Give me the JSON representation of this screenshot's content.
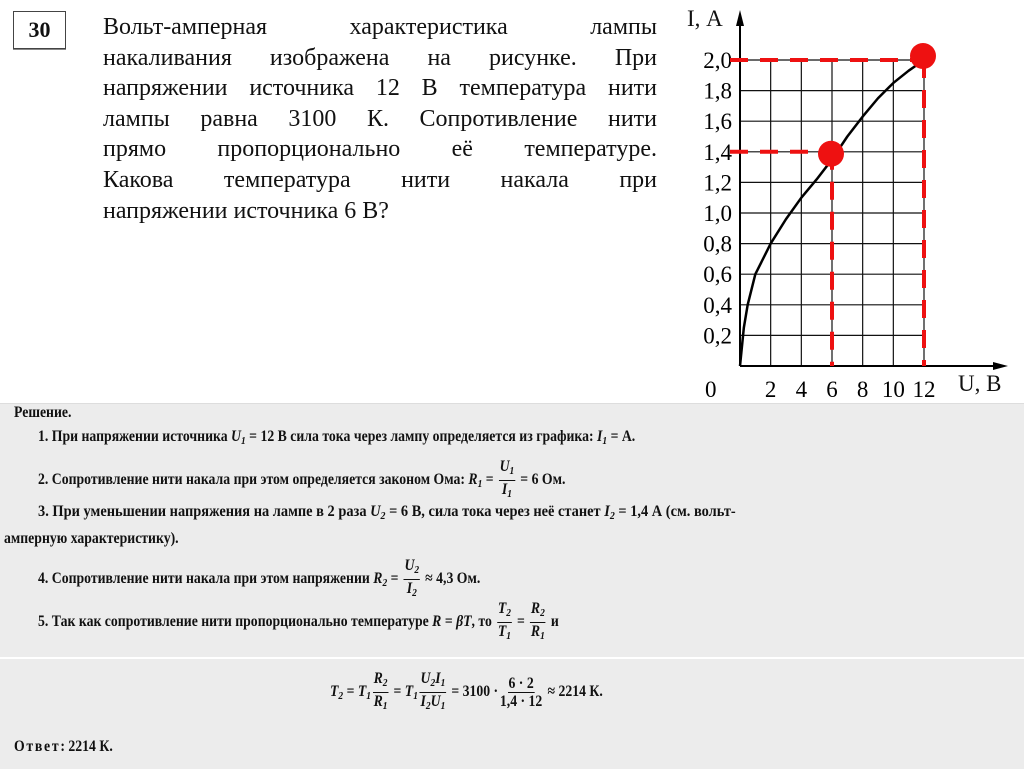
{
  "problem": {
    "number": "30",
    "lines": [
      "Вольт-амперная характеристика лампы",
      "накаливания изображена на рисунке. При",
      "напряжении источника 12 В температура нити",
      "лампы равна 3100 К. Сопротивление нити",
      "прямо пропорционально её температуре.",
      "Какова температура нити накала при",
      "напряжении источника 6 В?"
    ]
  },
  "chart_data": {
    "type": "line",
    "xlabel": "U, В",
    "ylabel": "I, А",
    "origin_label": "0",
    "xlim": [
      0,
      12
    ],
    "ylim": [
      0,
      2.0
    ],
    "grid": true,
    "x_ticks": [
      "2",
      "4",
      "6",
      "8",
      "10",
      "12"
    ],
    "y_ticks": [
      "0,2",
      "0,4",
      "0,6",
      "0,8",
      "1,0",
      "1,2",
      "1,4",
      "1,6",
      "1,8",
      "2,0"
    ],
    "series": [
      {
        "x": [
          0,
          0.25,
          0.5,
          1,
          2,
          3,
          4,
          5,
          6,
          7,
          8,
          9,
          10,
          11,
          12
        ],
        "y": [
          0,
          0.25,
          0.4,
          0.6,
          0.8,
          0.96,
          1.1,
          1.22,
          1.35,
          1.5,
          1.63,
          1.75,
          1.85,
          1.93,
          2.0
        ]
      }
    ],
    "highlighted_points": [
      {
        "x": 6,
        "y": 1.4
      },
      {
        "x": 12,
        "y": 2.0
      }
    ],
    "highlight_color": "#ee1111"
  },
  "solution": {
    "heading": "Решение.",
    "step1_a": "1. При напряжении источника ",
    "step1_b": " = 12 В сила тока через лампу определяется из графика: ",
    "step1_c": " = А.",
    "step2_a": "2. Сопротивление нити накала при этом определяется законом Ома: ",
    "step2_b": " = 6 Ом.",
    "step3_a": "3. При уменьшении напряжения на лампе в 2 раза ",
    "step3_b": " = 6 В, сила тока через неё станет ",
    "step3_c": " = 1,4 А (см. вольт-",
    "step3_d": "амперную характеристику).",
    "step4_a": "4. Сопротивление нити накала при этом напряжении ",
    "step4_b": " ≈ 4,3 Ом.",
    "step5_a": "5. Так как сопротивление нити пропорционально температуре ",
    "step5_b": "R = βT",
    "step5_c": ", то ",
    "step5_d": " и",
    "formula_num1": "3100 ·",
    "formula_frac_n": "6 · 2",
    "formula_frac_d": "1,4 · 12",
    "formula_result": " ≈ 2214 К.",
    "answer_label": "Ответ",
    "answer_value": ": 2214 К."
  }
}
